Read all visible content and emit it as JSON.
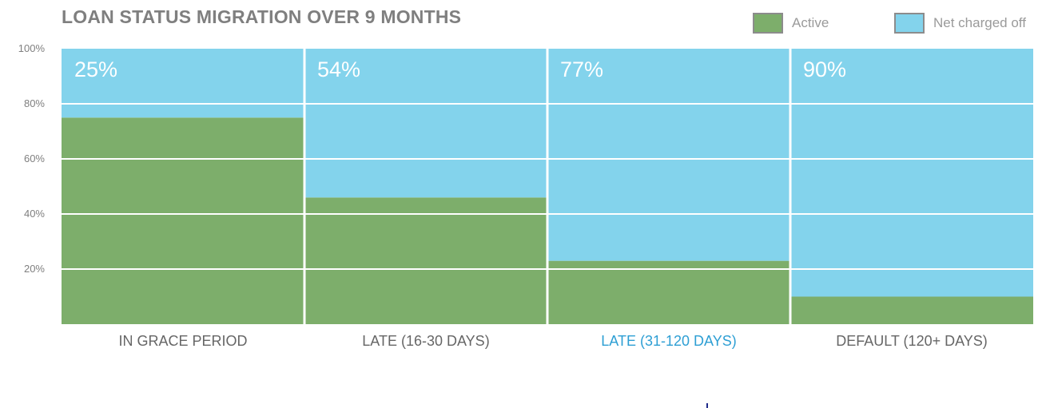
{
  "title": "LOAN STATUS MIGRATION OVER 9 MONTHS",
  "legend": {
    "active_label": "Active",
    "charged_off_label": "Net charged off"
  },
  "colors": {
    "active": "#7dae6b",
    "charged_off": "#83d3ec",
    "grid": "#ffffff",
    "axis_text": "#7f7f7f",
    "category_text": "#666666",
    "category_highlight": "#2e9fd4",
    "bar_label": "#ffffff"
  },
  "chart_data": {
    "type": "bar",
    "stacked": true,
    "title": "LOAN STATUS MIGRATION OVER 9 MONTHS",
    "categories": [
      "IN GRACE PERIOD",
      "LATE (16-30 DAYS)",
      "LATE (31-120 DAYS)",
      "DEFAULT (120+ DAYS)"
    ],
    "highlighted_category": "LATE (31-120 DAYS)",
    "series": [
      {
        "name": "Active",
        "values": [
          75,
          46,
          23,
          10
        ]
      },
      {
        "name": "Net charged off",
        "values": [
          25,
          54,
          77,
          90
        ]
      }
    ],
    "bar_labels": [
      "25%",
      "54%",
      "77%",
      "90%"
    ],
    "ylim": [
      0,
      100
    ],
    "yticks": [
      20,
      40,
      60,
      80,
      100
    ],
    "ytick_labels": [
      "20%",
      "40%",
      "60%",
      "80%",
      "100%"
    ],
    "grid": true,
    "legend_position": "top-right"
  }
}
